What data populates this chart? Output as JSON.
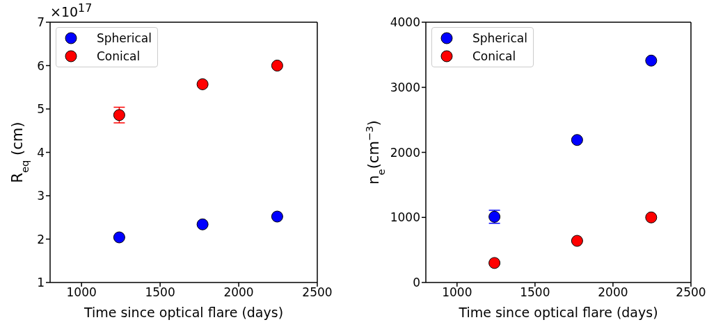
{
  "chart_data": [
    {
      "type": "scatter",
      "xlabel": "Time since optical flare (days)",
      "ylabel": "R$_{eq}$ (cm)",
      "annotations": [
        "×10$^{17}$"
      ],
      "x": [
        1240,
        1770,
        2245
      ],
      "series": [
        {
          "name": "Spherical",
          "color": "#0000ff",
          "values": [
            2.04,
            2.34,
            2.52
          ]
        },
        {
          "name": "Conical",
          "color": "#ff0000",
          "values": [
            4.86,
            5.57,
            6.0
          ],
          "errors": [
            0.18,
            null,
            null
          ]
        }
      ],
      "xlim": [
        800,
        2500
      ],
      "xticks": [
        1000,
        1500,
        2000,
        2500
      ],
      "ylim": [
        1,
        7
      ],
      "yticks": [
        1,
        2,
        3,
        4,
        5,
        6,
        7
      ],
      "legend": "top left",
      "marker": "circle",
      "grid": false
    },
    {
      "type": "scatter",
      "xlabel": "Time since optical flare (days)",
      "ylabel": "n$_{e}$(cm$^{−3}$)",
      "x": [
        1240,
        1770,
        2245
      ],
      "series": [
        {
          "name": "Spherical",
          "color": "#0000ff",
          "values": [
            1010,
            2190,
            3410
          ],
          "errors": [
            100,
            null,
            null
          ]
        },
        {
          "name": "Conical",
          "color": "#ff0000",
          "values": [
            300,
            640,
            1000
          ]
        }
      ],
      "xlim": [
        800,
        2500
      ],
      "xticks": [
        1000,
        1500,
        2000,
        2500
      ],
      "ylim": [
        0,
        4000
      ],
      "yticks": [
        0,
        1000,
        2000,
        3000,
        4000
      ],
      "legend": "top left",
      "marker": "circle",
      "grid": false
    }
  ]
}
